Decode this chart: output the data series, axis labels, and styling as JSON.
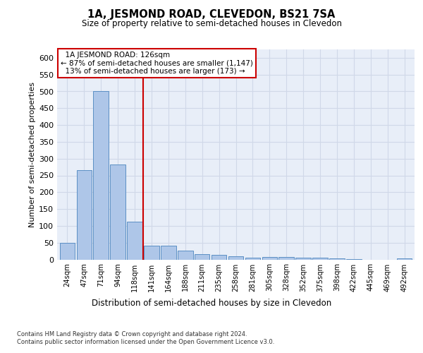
{
  "title": "1A, JESMOND ROAD, CLEVEDON, BS21 7SA",
  "subtitle": "Size of property relative to semi-detached houses in Clevedon",
  "xlabel": "Distribution of semi-detached houses by size in Clevedon",
  "ylabel": "Number of semi-detached properties",
  "footnote1": "Contains HM Land Registry data © Crown copyright and database right 2024.",
  "footnote2": "Contains public sector information licensed under the Open Government Licence v3.0.",
  "property_label": "1A JESMOND ROAD: 126sqm",
  "pct_smaller": 87,
  "n_smaller": 1147,
  "pct_larger": 13,
  "n_larger": 173,
  "bar_color": "#aec6e8",
  "bar_edge_color": "#5b8fc4",
  "vline_color": "#cc0000",
  "annotation_box_color": "#ffffff",
  "annotation_box_edge": "#cc0000",
  "grid_color": "#d0d8e8",
  "bg_color": "#e8eef8",
  "categories": [
    "24sqm",
    "47sqm",
    "71sqm",
    "94sqm",
    "118sqm",
    "141sqm",
    "164sqm",
    "188sqm",
    "211sqm",
    "235sqm",
    "258sqm",
    "281sqm",
    "305sqm",
    "328sqm",
    "352sqm",
    "375sqm",
    "398sqm",
    "422sqm",
    "445sqm",
    "469sqm",
    "492sqm"
  ],
  "values": [
    50,
    265,
    500,
    283,
    113,
    42,
    42,
    27,
    15,
    13,
    10,
    5,
    8,
    8,
    5,
    5,
    3,
    1,
    0,
    0,
    3
  ],
  "ylim": [
    0,
    625
  ],
  "yticks": [
    0,
    50,
    100,
    150,
    200,
    250,
    300,
    350,
    400,
    450,
    500,
    550,
    600
  ],
  "vline_x_index": 4.5
}
